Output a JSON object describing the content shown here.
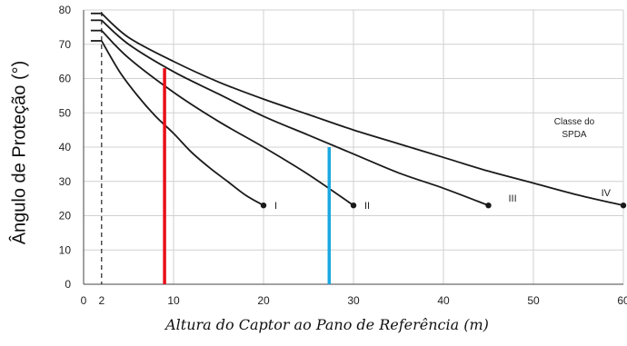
{
  "chart_data": {
    "type": "line",
    "ylabel": "Ângulo de Proteção (°)",
    "xlabel": "Altura do Captor ao Pano de Referência (m)",
    "xlim": [
      0,
      60
    ],
    "ylim": [
      0,
      80
    ],
    "xticks": [
      "0",
      "2",
      "10",
      "20",
      "30",
      "40",
      "50",
      "60"
    ],
    "yticks": [
      "0",
      "10",
      "20",
      "30",
      "40",
      "50",
      "60",
      "70",
      "80"
    ],
    "grid": true,
    "legend_title": "Classe do SPDA",
    "series": [
      {
        "name": "I",
        "flat_y": 71,
        "x": [
          2,
          4,
          6,
          8,
          10,
          12,
          14,
          16,
          18,
          20
        ],
        "y": [
          71,
          62,
          55,
          49,
          44,
          38.5,
          34,
          30,
          26,
          23
        ]
      },
      {
        "name": "II",
        "flat_y": 74,
        "x": [
          2,
          5,
          10,
          15,
          20,
          25,
          30
        ],
        "y": [
          74,
          66,
          56,
          47.5,
          40,
          32,
          23
        ]
      },
      {
        "name": "III",
        "flat_y": 77,
        "x": [
          2,
          5,
          10,
          15,
          20,
          25,
          30,
          35,
          40,
          45
        ],
        "y": [
          77,
          70,
          62,
          55.5,
          49,
          43.5,
          38,
          32.5,
          28,
          23
        ]
      },
      {
        "name": "IV",
        "flat_y": 79,
        "x": [
          2,
          5,
          10,
          15,
          20,
          25,
          30,
          35,
          40,
          45,
          50,
          55,
          60
        ],
        "y": [
          79,
          72,
          65,
          59,
          54,
          49.5,
          45,
          41,
          37,
          33,
          29.5,
          26,
          23
        ]
      }
    ],
    "reference_lines": [
      {
        "name": "red-marker",
        "x": 9,
        "y_top": 63,
        "color": "#e8101a"
      },
      {
        "name": "blue-marker",
        "x": 27.3,
        "y_top": 40,
        "color": "#1aa8e0"
      }
    ],
    "dashed_line": {
      "x": 2
    },
    "line_color": "#1a1a1a",
    "grid_color": "#d0d0d0"
  }
}
